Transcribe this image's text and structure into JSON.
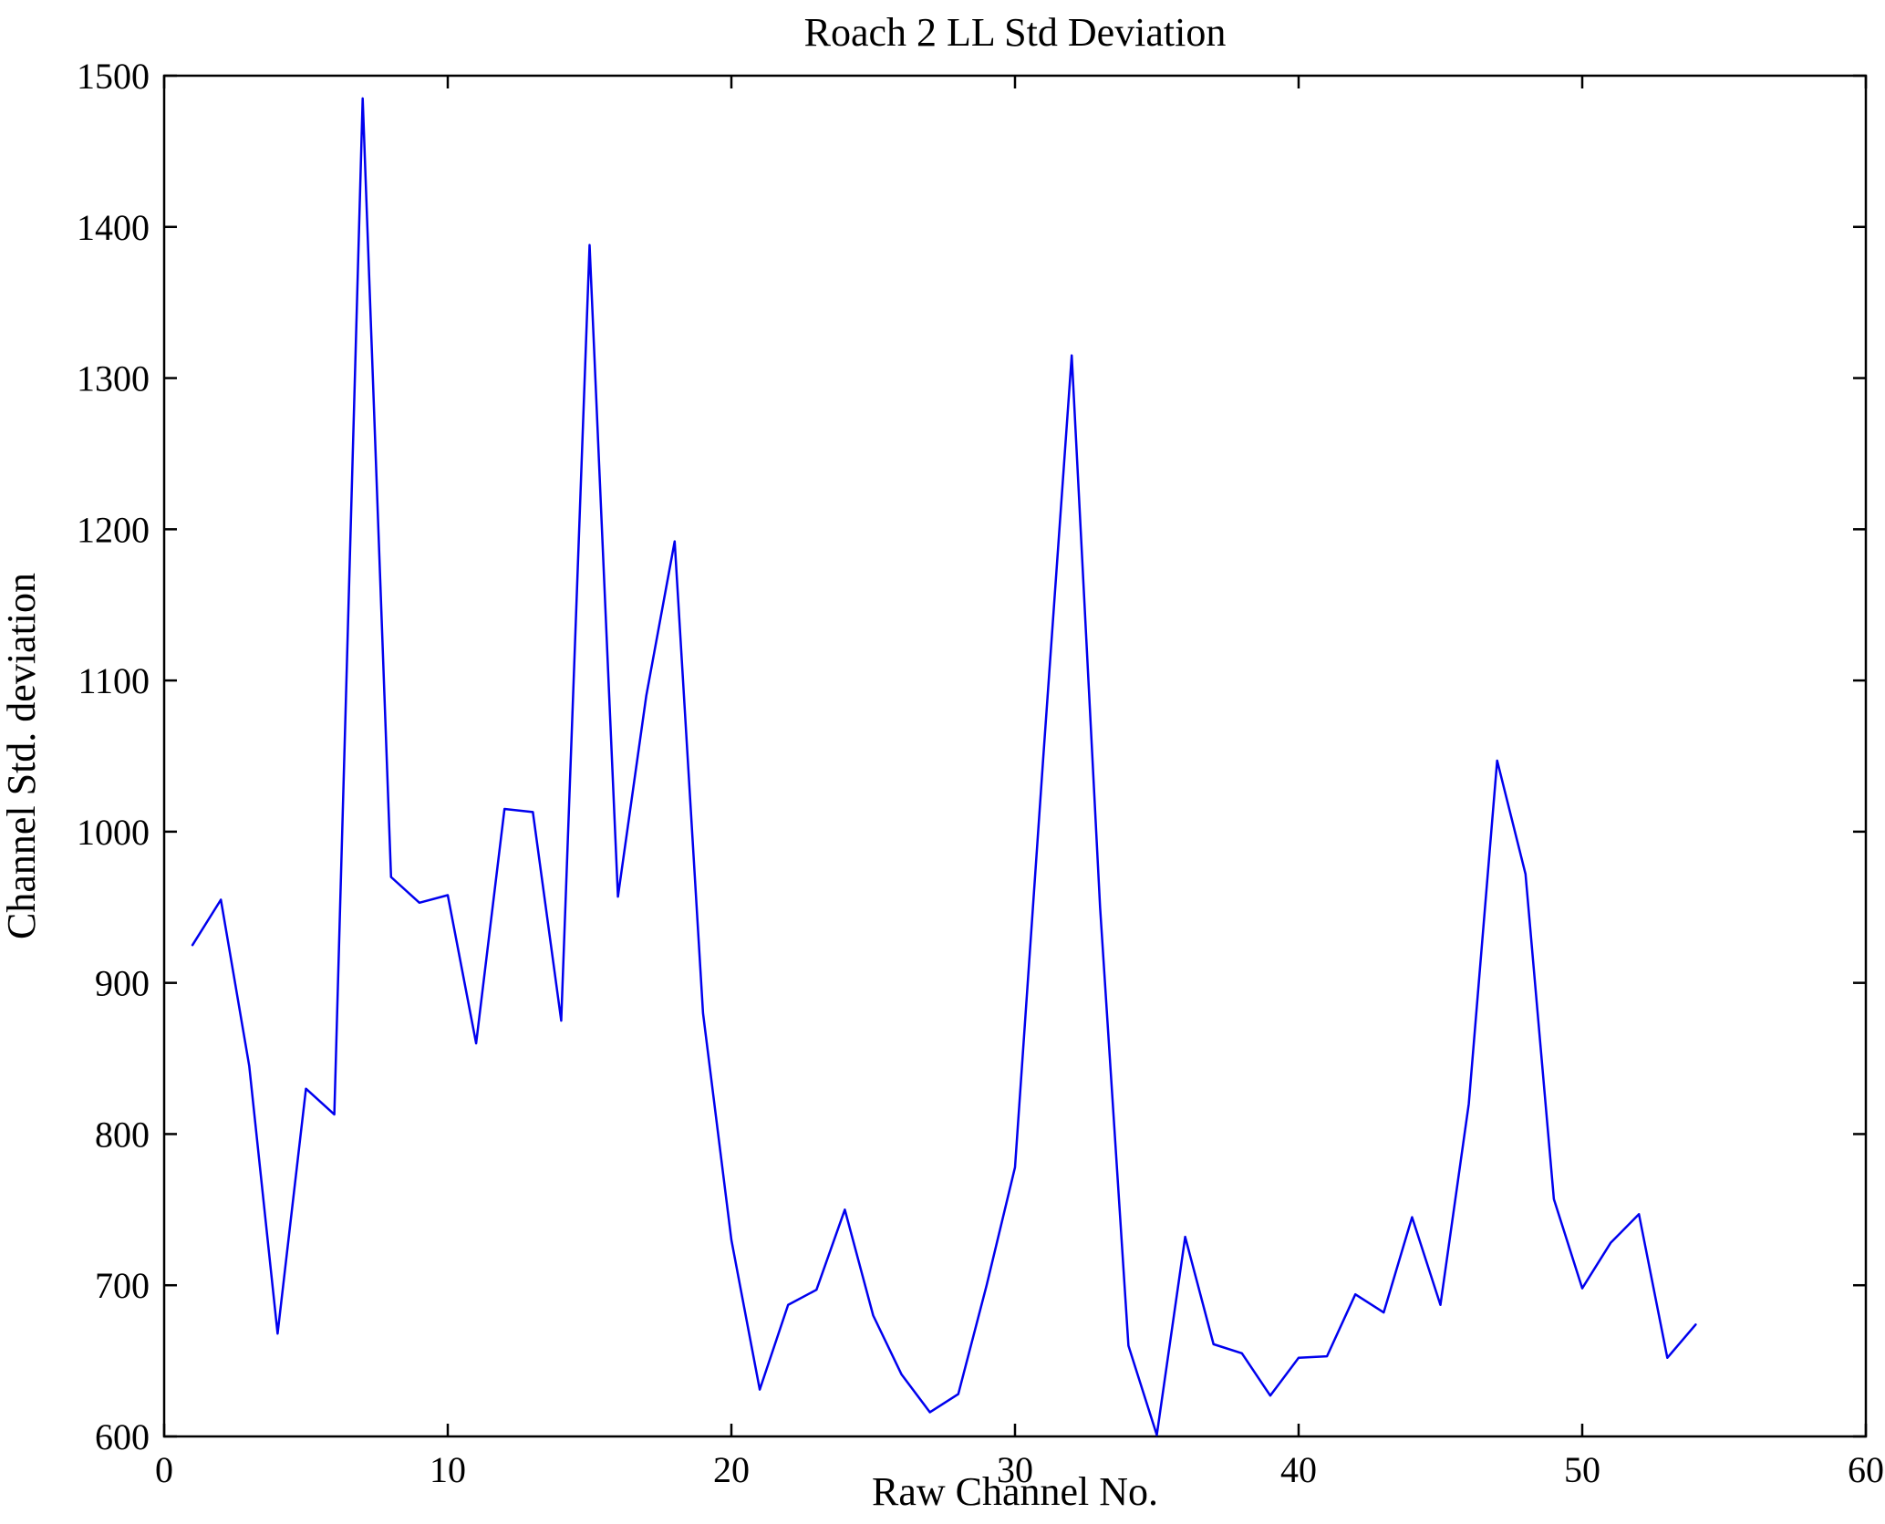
{
  "chart_data": {
    "type": "line",
    "title": "Roach 2 LL Std Deviation",
    "xlabel": "Raw Channel No.",
    "ylabel": "Channel Std. deviation",
    "xlim": [
      0,
      60
    ],
    "ylim": [
      600,
      1500
    ],
    "xticks": [
      0,
      10,
      20,
      30,
      40,
      50,
      60
    ],
    "yticks": [
      600,
      700,
      800,
      900,
      1000,
      1100,
      1200,
      1300,
      1400,
      1500
    ],
    "grid": false,
    "legend": false,
    "line_color": "#0000ee",
    "axes_color": "#000000",
    "x": [
      1,
      2,
      3,
      4,
      5,
      6,
      7,
      8,
      9,
      10,
      11,
      12,
      13,
      14,
      15,
      16,
      17,
      18,
      19,
      20,
      21,
      22,
      23,
      24,
      25,
      26,
      27,
      28,
      29,
      30,
      31,
      32,
      33,
      34,
      35,
      36,
      37,
      38,
      39,
      40,
      41,
      42,
      43,
      44,
      45,
      46,
      47,
      48,
      49,
      50,
      51,
      52,
      53,
      54
    ],
    "y": [
      925,
      955,
      845,
      668,
      830,
      813,
      1485,
      970,
      953,
      958,
      860,
      1015,
      1013,
      875,
      1388,
      957,
      1090,
      1192,
      880,
      730,
      631,
      687,
      697,
      750,
      680,
      641,
      616,
      628,
      700,
      778,
      1050,
      1315,
      950,
      660,
      601,
      732,
      661,
      655,
      627,
      652,
      653,
      694,
      682,
      745,
      687,
      820,
      1047,
      972,
      757,
      698,
      728,
      747,
      652,
      674
    ]
  }
}
